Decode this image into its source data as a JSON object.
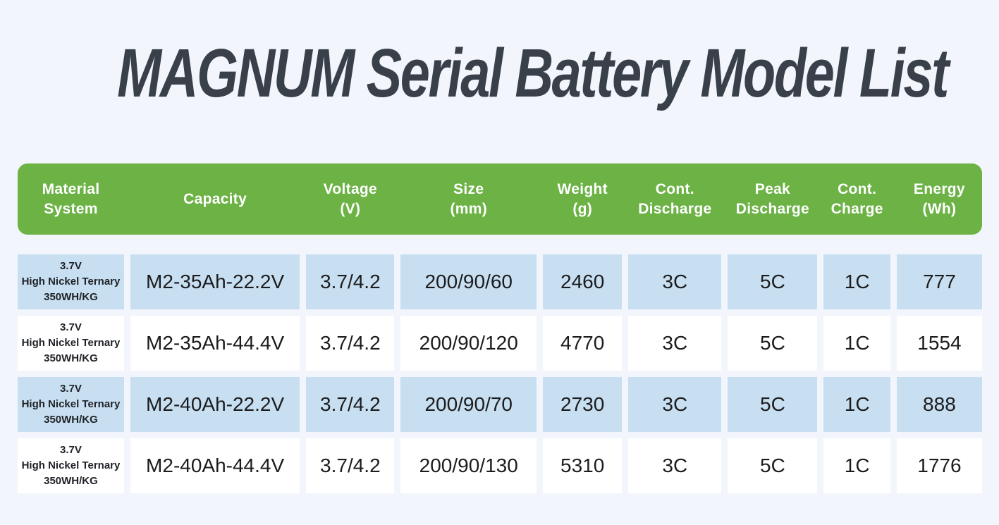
{
  "chart_data": {
    "type": "table",
    "title": "MAGNUM Serial Battery Model List",
    "columns": [
      "Material\nSystem",
      "Capacity",
      "Voltage\n(V)",
      "Size\n(mm)",
      "Weight\n(g)",
      "Cont.\nDischarge",
      "Peak\nDischarge",
      "Cont.\nCharge",
      "Energy\n(Wh)"
    ],
    "rows": [
      [
        "3.7V\nHigh Nickel Ternary\n350WH/KG",
        "M2-35Ah-22.2V",
        "3.7/4.2",
        "200/90/60",
        "2460",
        "3C",
        "5C",
        "1C",
        "777"
      ],
      [
        "3.7V\nHigh Nickel Ternary\n350WH/KG",
        "M2-35Ah-44.4V",
        "3.7/4.2",
        "200/90/120",
        "4770",
        "3C",
        "5C",
        "1C",
        "1554"
      ],
      [
        "3.7V\nHigh Nickel Ternary\n350WH/KG",
        "M2-40Ah-22.2V",
        "3.7/4.2",
        "200/90/70",
        "2730",
        "3C",
        "5C",
        "1C",
        "888"
      ],
      [
        "3.7V\nHigh Nickel Ternary\n350WH/KG",
        "M2-40Ah-44.4V",
        "3.7/4.2",
        "200/90/130",
        "5310",
        "3C",
        "5C",
        "1C",
        "1776"
      ]
    ],
    "layout": {
      "highlighted_row_indices": [
        0,
        2
      ],
      "row_striping": "alternating, first row highlighted blue",
      "header_position": "top, rounded green bar"
    },
    "colors": {
      "page_bg": "#f2f5fb",
      "title_text": "#394049",
      "header_bg": "#6cb245",
      "header_text": "#ffffff",
      "row_highlight_bg": "#c7dff1",
      "row_plain_bg": "#ffffff",
      "cell_text": "#1c1c1e"
    }
  }
}
